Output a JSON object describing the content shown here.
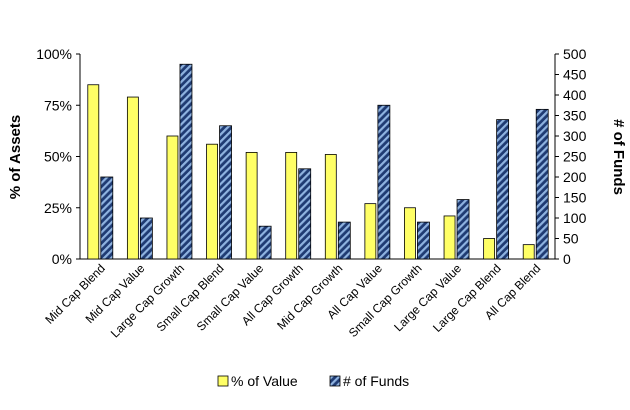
{
  "chart_data": {
    "type": "bar",
    "categories": [
      "Mid Cap Blend",
      "Mid Cap Value",
      "Large Cap Growth",
      "Small Cap Blend",
      "Small Cap Value",
      "All Cap Growth",
      "Mid Cap Growth",
      "All Cap Value",
      "Small Cap Growth",
      "Large Cap Value",
      "Large Cap Blend",
      "All Cap Blend"
    ],
    "series": [
      {
        "name": "% of Value",
        "axis": "left",
        "color": "#ffff66",
        "values": [
          85,
          79,
          60,
          56,
          52,
          52,
          51,
          27,
          25,
          21,
          10,
          7
        ]
      },
      {
        "name": "# of Funds",
        "axis": "right",
        "color": "#1f3b73",
        "hatch_color": "#8fb3e0",
        "values": [
          200,
          100,
          475,
          325,
          80,
          220,
          90,
          375,
          90,
          145,
          340,
          365
        ]
      }
    ],
    "ylabel": "% of Assets",
    "y2label": "# of Funds",
    "ylim": [
      0,
      100
    ],
    "y2lim": [
      0,
      500
    ],
    "yticks": [
      "0%",
      "25%",
      "50%",
      "75%",
      "100%"
    ],
    "y2ticks": [
      "0",
      "50",
      "100",
      "150",
      "200",
      "250",
      "300",
      "350",
      "400",
      "450",
      "500"
    ],
    "grid": false,
    "legend_position": "bottom"
  }
}
